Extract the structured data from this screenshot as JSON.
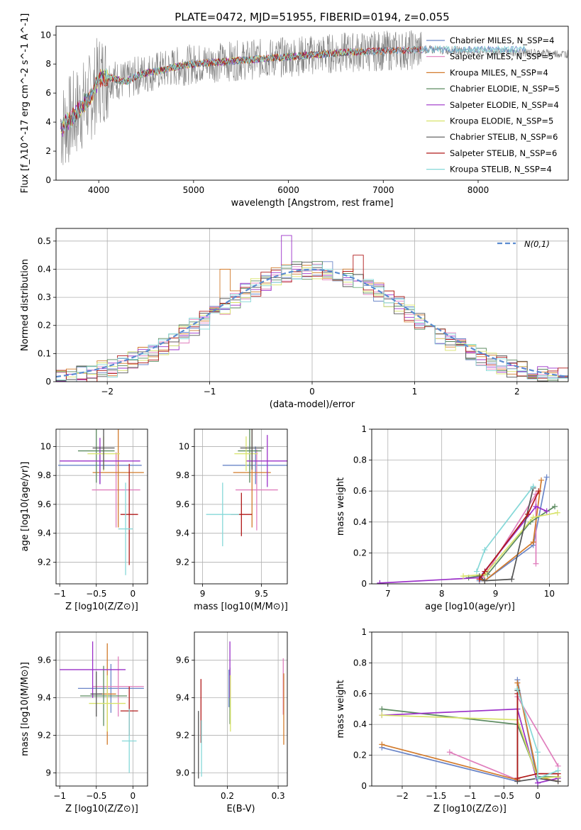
{
  "figure_title": "PLATE=0472, MJD=51955, FIBERID=0194, z=0.055",
  "colors": {
    "Chabrier MILES": "#6b86c8",
    "Salpeter MILES": "#e07fbd",
    "Kroupa MILES": "#d27b2c",
    "Chabrier ELODIE": "#5b8a5f",
    "Salpeter ELODIE": "#9b30c8",
    "Kroupa ELODIE": "#d8e36a",
    "Chabrier STELIB": "#555555",
    "Salpeter STELIB": "#b01a1a",
    "Kroupa STELIB": "#86d8d8",
    "data": "#808080",
    "normal": "#5b8bd0"
  },
  "chart_data": [
    {
      "id": "spectrum",
      "type": "line",
      "title": "PLATE=0472, MJD=51955, FIBERID=0194, z=0.055",
      "xlabel": "wavelength [Angstrom, rest frame]",
      "ylabel": "Flux [f_λ10^-17 erg cm^-2 s^-1 A^-1]",
      "xlim": [
        3550,
        8950
      ],
      "ylim": [
        0,
        10.6
      ],
      "xticks": [
        4000,
        5000,
        6000,
        7000,
        8000
      ],
      "yticks": [
        0,
        2,
        4,
        6,
        8,
        10
      ],
      "grid": false,
      "legend_position": "right",
      "continuum": [
        [
          3600,
          3.6
        ],
        [
          3700,
          4.2
        ],
        [
          3800,
          4.9
        ],
        [
          3900,
          5.6
        ],
        [
          3950,
          6.1
        ],
        [
          4000,
          7.0
        ],
        [
          4100,
          7.1
        ],
        [
          4200,
          6.9
        ],
        [
          4300,
          6.8
        ],
        [
          4400,
          7.2
        ],
        [
          4500,
          7.4
        ],
        [
          4600,
          7.5
        ],
        [
          4700,
          7.6
        ],
        [
          4800,
          7.8
        ],
        [
          4900,
          7.9
        ],
        [
          5000,
          8.0
        ],
        [
          5200,
          8.1
        ],
        [
          5400,
          8.2
        ],
        [
          5600,
          8.3
        ],
        [
          5800,
          8.4
        ],
        [
          6000,
          8.5
        ],
        [
          6200,
          8.6
        ],
        [
          6400,
          8.7
        ],
        [
          6600,
          8.8
        ],
        [
          6800,
          8.85
        ],
        [
          7000,
          8.9
        ],
        [
          7200,
          8.95
        ],
        [
          7400,
          9.0
        ]
      ],
      "series": [
        {
          "name": "Chabrier MILES, N_SSP=4",
          "model": "Chabrier MILES",
          "n": 4,
          "end": 8500
        },
        {
          "name": "Salpeter MILES, N_SSP=5",
          "model": "Salpeter MILES",
          "n": 5,
          "end": 7400
        },
        {
          "name": "Kroupa MILES, N_SSP=4",
          "model": "Kroupa MILES",
          "n": 4,
          "end": 7400
        },
        {
          "name": "Chabrier ELODIE, N_SSP=5",
          "model": "Chabrier ELODIE",
          "n": 5,
          "end": 6800
        },
        {
          "name": "Salpeter ELODIE, N_SSP=4",
          "model": "Salpeter ELODIE",
          "n": 4,
          "end": 6800
        },
        {
          "name": "Kroupa ELODIE, N_SSP=5",
          "model": "Kroupa ELODIE",
          "n": 5,
          "end": 6800
        },
        {
          "name": "Chabrier STELIB, N_SSP=6",
          "model": "Chabrier STELIB",
          "n": 6,
          "end": 7400
        },
        {
          "name": "Salpeter STELIB, N_SSP=6",
          "model": "Salpeter STELIB",
          "n": 6,
          "end": 7400
        },
        {
          "name": "Kroupa STELIB, N_SSP=4",
          "model": "Kroupa STELIB",
          "n": 4,
          "end": 8500
        }
      ]
    },
    {
      "id": "residuals",
      "type": "line",
      "xlabel": "(data-model)/error",
      "ylabel": "Normed distribution",
      "xlim": [
        -2.5,
        2.5
      ],
      "ylim": [
        0,
        0.545
      ],
      "xticks": [
        -2,
        -1,
        0,
        1,
        2
      ],
      "yticks": [
        0.0,
        0.1,
        0.2,
        0.3,
        0.4,
        0.5
      ],
      "grid": true,
      "legend_position": "top-right",
      "legend": "N(0,1)",
      "bin_width": 0.1,
      "series_models": [
        "Chabrier MILES",
        "Salpeter MILES",
        "Kroupa MILES",
        "Chabrier ELODIE",
        "Salpeter ELODIE",
        "Kroupa ELODIE",
        "Chabrier STELIB",
        "Salpeter STELIB",
        "Kroupa STELIB"
      ],
      "spikes": [
        [
          -0.25,
          0.52
        ],
        [
          0.45,
          0.45
        ],
        [
          -0.85,
          0.4
        ]
      ]
    },
    {
      "id": "age_vs_Z",
      "type": "scatter",
      "xlabel": "Z [log10(Z/Z⊙)]",
      "ylabel": "age [log10(age/yr)]",
      "xlim": [
        -1.05,
        0.2
      ],
      "ylim": [
        9.05,
        10.12
      ],
      "xticks": [
        -1.0,
        -0.5,
        0.0
      ],
      "yticks": [
        9.2,
        9.4,
        9.6,
        9.8,
        10.0
      ],
      "grid": true,
      "points": [
        {
          "model": "Chabrier MILES",
          "x": -0.45,
          "xerr": 0.57,
          "y": 9.87,
          "yerr": 0.13
        },
        {
          "model": "Salpeter MILES",
          "x": -0.23,
          "xerr": 0.33,
          "y": 9.7,
          "yerr": 0.26
        },
        {
          "model": "Kroupa MILES",
          "x": -0.2,
          "xerr": 0.35,
          "y": 9.82,
          "yerr": 0.38
        },
        {
          "model": "Chabrier ELODIE",
          "x": -0.5,
          "xerr": 0.25,
          "y": 9.97,
          "yerr": 0.22
        },
        {
          "model": "Salpeter ELODIE",
          "x": -0.45,
          "xerr": 0.55,
          "y": 9.9,
          "yerr": 0.16
        },
        {
          "model": "Kroupa ELODIE",
          "x": -0.4,
          "xerr": 0.22,
          "y": 9.95,
          "yerr": 0.12
        },
        {
          "model": "Chabrier STELIB",
          "x": -0.4,
          "xerr": 0.15,
          "y": 9.99,
          "yerr": 0.15
        },
        {
          "model": "Salpeter STELIB",
          "x": -0.05,
          "xerr": 0.12,
          "y": 9.53,
          "yerr": 0.35
        },
        {
          "model": "Kroupa STELIB",
          "x": -0.1,
          "xerr": 0.1,
          "y": 9.43,
          "yerr": 0.32
        }
      ]
    },
    {
      "id": "age_vs_mass",
      "type": "scatter",
      "xlabel": "mass [log10(M/M⊙)]",
      "ylabel": "",
      "xlim": [
        8.93,
        9.72
      ],
      "ylim": [
        9.05,
        10.12
      ],
      "xticks": [
        9.0,
        9.5
      ],
      "yticks": [
        9.2,
        9.4,
        9.6,
        9.8,
        10.0
      ],
      "grid": true,
      "points": [
        {
          "model": "Chabrier MILES",
          "x": 9.45,
          "xerr": 0.28,
          "y": 9.87,
          "yerr": 0.13
        },
        {
          "model": "Salpeter MILES",
          "x": 9.46,
          "xerr": 0.18,
          "y": 9.7,
          "yerr": 0.28
        },
        {
          "model": "Kroupa MILES",
          "x": 9.42,
          "xerr": 0.16,
          "y": 9.82,
          "yerr": 0.38
        },
        {
          "model": "Chabrier ELODIE",
          "x": 9.4,
          "xerr": 0.1,
          "y": 9.97,
          "yerr": 0.22
        },
        {
          "model": "Salpeter ELODIE",
          "x": 9.55,
          "xerr": 0.18,
          "y": 9.9,
          "yerr": 0.18
        },
        {
          "model": "Kroupa ELODIE",
          "x": 9.37,
          "xerr": 0.1,
          "y": 9.95,
          "yerr": 0.12
        },
        {
          "model": "Chabrier STELIB",
          "x": 9.42,
          "xerr": 0.1,
          "y": 9.99,
          "yerr": 0.15
        },
        {
          "model": "Salpeter STELIB",
          "x": 9.33,
          "xerr": 0.09,
          "y": 9.53,
          "yerr": 0.15
        },
        {
          "model": "Kroupa STELIB",
          "x": 9.17,
          "xerr": 0.14,
          "y": 9.53,
          "yerr": 0.22
        }
      ]
    },
    {
      "id": "weight_vs_age",
      "type": "line",
      "xlabel": "age [log10(age/yr)]",
      "ylabel": "mass weight",
      "xlim": [
        6.7,
        10.35
      ],
      "ylim": [
        0,
        1.0
      ],
      "xticks": [
        7,
        8,
        9,
        10
      ],
      "yticks": [
        0.0,
        0.2,
        0.4,
        0.6,
        0.8,
        1.0
      ],
      "grid": true,
      "series": [
        {
          "model": "Chabrier MILES",
          "points": [
            [
              8.7,
              0.02
            ],
            [
              8.8,
              0.02
            ],
            [
              9.7,
              0.25
            ],
            [
              9.95,
              0.69
            ]
          ]
        },
        {
          "model": "Salpeter MILES",
          "points": [
            [
              8.75,
              0.04
            ],
            [
              8.85,
              0.08
            ],
            [
              9.75,
              0.58
            ],
            [
              9.75,
              0.13
            ]
          ]
        },
        {
          "model": "Kroupa MILES",
          "points": [
            [
              8.7,
              0.03
            ],
            [
              8.8,
              0.02
            ],
            [
              9.7,
              0.27
            ],
            [
              9.85,
              0.67
            ]
          ]
        },
        {
          "model": "Chabrier ELODIE",
          "points": [
            [
              8.5,
              0.04
            ],
            [
              8.85,
              0.06
            ],
            [
              9.65,
              0.4
            ],
            [
              10.1,
              0.5
            ]
          ]
        },
        {
          "model": "Salpeter ELODIE",
          "points": [
            [
              6.85,
              0.005
            ],
            [
              8.7,
              0.04
            ],
            [
              9.75,
              0.5
            ],
            [
              9.95,
              0.47
            ]
          ]
        },
        {
          "model": "Kroupa ELODIE",
          "points": [
            [
              8.4,
              0.05
            ],
            [
              8.8,
              0.06
            ],
            [
              9.7,
              0.43
            ],
            [
              10.15,
              0.46
            ]
          ]
        },
        {
          "model": "Chabrier STELIB",
          "points": [
            [
              8.7,
              0.05
            ],
            [
              8.8,
              0.02
            ],
            [
              9.3,
              0.03
            ],
            [
              9.7,
              0.62
            ]
          ]
        },
        {
          "model": "Salpeter STELIB",
          "points": [
            [
              8.7,
              0.03
            ],
            [
              8.8,
              0.08
            ],
            [
              9.6,
              0.45
            ],
            [
              9.8,
              0.6
            ]
          ]
        },
        {
          "model": "Kroupa STELIB",
          "points": [
            [
              8.65,
              0.08
            ],
            [
              8.8,
              0.22
            ],
            [
              9.7,
              0.63
            ]
          ]
        }
      ]
    },
    {
      "id": "mass_vs_Z",
      "type": "scatter",
      "xlabel": "Z [log10(Z/Z⊙)]",
      "ylabel": "mass [log10(M/M⊙)]",
      "xlim": [
        -1.05,
        0.2
      ],
      "ylim": [
        8.93,
        9.75
      ],
      "xticks": [
        -1.0,
        -0.5,
        0.0
      ],
      "yticks": [
        9.0,
        9.2,
        9.4,
        9.6
      ],
      "grid": true,
      "points": [
        {
          "model": "Chabrier MILES",
          "x": -0.3,
          "xerr": 0.45,
          "y": 9.45,
          "yerr": 0.13
        },
        {
          "model": "Salpeter MILES",
          "x": -0.2,
          "xerr": 0.35,
          "y": 9.46,
          "yerr": 0.16
        },
        {
          "model": "Kroupa MILES",
          "x": -0.35,
          "xerr": 0.12,
          "y": 9.42,
          "yerr": 0.27
        },
        {
          "model": "Chabrier ELODIE",
          "x": -0.4,
          "xerr": 0.32,
          "y": 9.41,
          "yerr": 0.16
        },
        {
          "model": "Salpeter ELODIE",
          "x": -0.55,
          "xerr": 0.45,
          "y": 9.55,
          "yerr": 0.15
        },
        {
          "model": "Kroupa ELODIE",
          "x": -0.35,
          "xerr": 0.25,
          "y": 9.37,
          "yerr": 0.15
        },
        {
          "model": "Chabrier STELIB",
          "x": -0.5,
          "xerr": 0.08,
          "y": 9.42,
          "yerr": 0.12
        },
        {
          "model": "Salpeter STELIB",
          "x": -0.05,
          "xerr": 0.12,
          "y": 9.33,
          "yerr": 0.13
        },
        {
          "model": "Kroupa STELIB",
          "x": -0.05,
          "xerr": 0.1,
          "y": 9.17,
          "yerr": 0.17
        }
      ]
    },
    {
      "id": "mass_vs_EBV",
      "type": "scatter",
      "xlabel": "E(B-V)",
      "ylabel": "",
      "xlim": [
        0.135,
        0.318
      ],
      "ylim": [
        8.93,
        9.75
      ],
      "xticks": [
        0.2,
        0.3
      ],
      "yticks": [
        9.0,
        9.2,
        9.4,
        9.6
      ],
      "grid": true,
      "points": [
        {
          "model": "Chabrier MILES",
          "x": 0.203,
          "y": 9.45,
          "yerr": 0.1
        },
        {
          "model": "Salpeter MILES",
          "x": 0.31,
          "y": 9.46,
          "yerr": 0.15
        },
        {
          "model": "Kroupa MILES",
          "x": 0.311,
          "y": 9.34,
          "yerr": 0.19
        },
        {
          "model": "Chabrier ELODIE",
          "x": 0.205,
          "y": 9.41,
          "yerr": 0.15
        },
        {
          "model": "Salpeter ELODIE",
          "x": 0.205,
          "y": 9.55,
          "yerr": 0.15
        },
        {
          "model": "Kroupa ELODIE",
          "x": 0.206,
          "y": 9.37,
          "yerr": 0.15
        },
        {
          "model": "Chabrier STELIB",
          "x": 0.143,
          "y": 9.15,
          "yerr": 0.18
        },
        {
          "model": "Salpeter STELIB",
          "x": 0.148,
          "y": 9.33,
          "yerr": 0.17
        },
        {
          "model": "Kroupa STELIB",
          "x": 0.149,
          "y": 9.13,
          "yerr": 0.15
        }
      ]
    },
    {
      "id": "weight_vs_Z",
      "type": "line",
      "xlabel": "Z [log10(Z/Z⊙)]",
      "ylabel": "mass weight",
      "xlim": [
        -2.45,
        0.45
      ],
      "ylim": [
        0,
        1.0
      ],
      "xticks": [
        -2.0,
        -1.5,
        -1.0,
        -0.5,
        0.0
      ],
      "yticks": [
        0.0,
        0.2,
        0.4,
        0.6,
        0.8,
        1.0
      ],
      "grid": true,
      "series": [
        {
          "model": "Chabrier MILES",
          "points": [
            [
              -2.3,
              0.25
            ],
            [
              -0.3,
              0.03
            ],
            [
              -0.3,
              0.69
            ],
            [
              0.0,
              0.02
            ]
          ]
        },
        {
          "model": "Salpeter MILES",
          "points": [
            [
              -1.3,
              0.22
            ],
            [
              -0.3,
              0.04
            ],
            [
              -0.3,
              0.58
            ],
            [
              0.3,
              0.13
            ]
          ]
        },
        {
          "model": "Kroupa MILES",
          "points": [
            [
              -2.3,
              0.27
            ],
            [
              -0.3,
              0.04
            ],
            [
              -0.3,
              0.67
            ],
            [
              0.0,
              0.06
            ],
            [
              0.3,
              0.03
            ]
          ]
        },
        {
          "model": "Chabrier ELODIE",
          "points": [
            [
              -2.3,
              0.5
            ],
            [
              -0.3,
              0.4
            ],
            [
              0.0,
              0.06
            ],
            [
              0.3,
              0.06
            ]
          ]
        },
        {
          "model": "Salpeter ELODIE",
          "points": [
            [
              -2.3,
              0.46
            ],
            [
              -0.3,
              0.5
            ],
            [
              0.0,
              0.02
            ],
            [
              0.3,
              0.05
            ]
          ]
        },
        {
          "model": "Kroupa ELODIE",
          "points": [
            [
              -2.3,
              0.46
            ],
            [
              -0.3,
              0.43
            ],
            [
              0.0,
              0.05
            ],
            [
              0.3,
              0.06
            ]
          ]
        },
        {
          "model": "Chabrier STELIB",
          "points": [
            [
              -0.3,
              0.62
            ],
            [
              -0.3,
              0.03
            ],
            [
              0.0,
              0.05
            ],
            [
              0.3,
              0.03
            ]
          ]
        },
        {
          "model": "Salpeter STELIB",
          "points": [
            [
              -0.3,
              0.6
            ],
            [
              -0.3,
              0.05
            ],
            [
              0.0,
              0.08
            ],
            [
              0.3,
              0.08
            ]
          ]
        },
        {
          "model": "Kroupa STELIB",
          "points": [
            [
              -0.3,
              0.63
            ],
            [
              0.0,
              0.22
            ],
            [
              0.0,
              0.05
            ],
            [
              0.3,
              0.1
            ]
          ]
        }
      ]
    }
  ]
}
